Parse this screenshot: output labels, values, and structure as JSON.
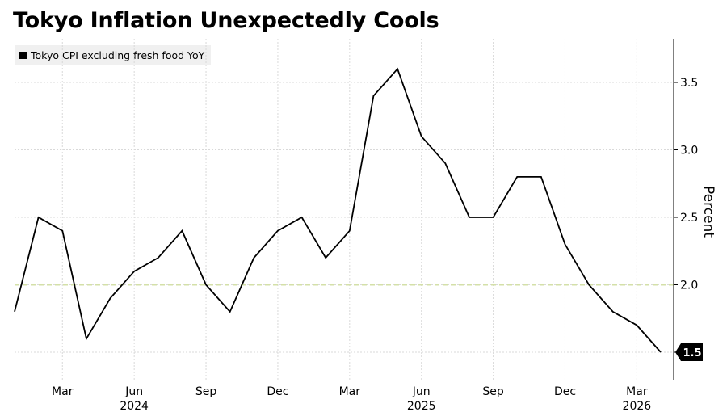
{
  "chart_data": {
    "type": "line",
    "title": "Tokyo Inflation Unexpectedly Cools",
    "ylabel": "Percent",
    "ylim": [
      1.2,
      3.8
    ],
    "yticks": [
      "1.5",
      "2.0",
      "2.5",
      "3.0",
      "3.5"
    ],
    "reference_line": {
      "value": 2.0,
      "color": "#d4e0a8",
      "style": "dashed"
    },
    "grid": true,
    "legend_position": "top-left",
    "colors": {
      "line": "#000000",
      "grid": "#d9d9d9",
      "end_label_bg": "#000000"
    },
    "series": [
      {
        "name": "Tokyo CPI excluding fresh food YoY",
        "x": [
          "2024-01",
          "2024-02",
          "2024-03",
          "2024-04",
          "2024-05",
          "2024-06",
          "2024-07",
          "2024-08",
          "2024-09",
          "2024-10",
          "2024-11",
          "2024-12",
          "2025-01",
          "2025-02",
          "2025-03",
          "2025-04",
          "2025-05",
          "2025-06",
          "2025-07",
          "2025-08",
          "2025-09",
          "2025-10",
          "2025-11",
          "2025-12",
          "2026-01",
          "2026-02",
          "2026-03",
          "2026-04"
        ],
        "values": [
          1.8,
          2.5,
          2.4,
          1.6,
          1.9,
          2.1,
          2.2,
          2.4,
          2.0,
          1.8,
          2.2,
          2.4,
          2.5,
          2.2,
          2.4,
          3.4,
          3.6,
          3.1,
          2.9,
          2.5,
          2.5,
          2.8,
          2.8,
          2.3,
          2.0,
          1.8,
          1.7,
          1.5
        ]
      }
    ],
    "end_label": "1.5",
    "x_ticks": [
      {
        "label": "Mar",
        "x": "2024-03"
      },
      {
        "label": "Jun",
        "x": "2024-06"
      },
      {
        "label": "Sep",
        "x": "2024-09"
      },
      {
        "label": "Dec",
        "x": "2024-12"
      },
      {
        "label": "Mar",
        "x": "2025-03"
      },
      {
        "label": "Jun",
        "x": "2025-06"
      },
      {
        "label": "Sep",
        "x": "2025-09"
      },
      {
        "label": "Dec",
        "x": "2025-12"
      },
      {
        "label": "Mar",
        "x": "2026-03"
      }
    ],
    "x_year_labels": [
      {
        "label": "2024",
        "x": "2024-06"
      },
      {
        "label": "2025",
        "x": "2025-06"
      },
      {
        "label": "2026",
        "x": "2026-03"
      }
    ]
  }
}
